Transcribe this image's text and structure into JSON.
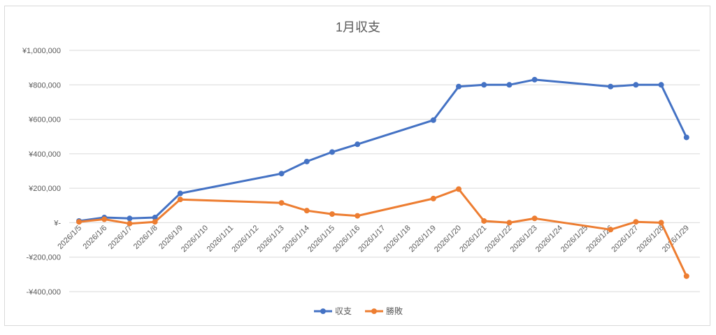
{
  "chart_data": {
    "type": "line",
    "title": "1月収支",
    "xlabel": "",
    "ylabel": "",
    "x": [
      "2026/1/5",
      "2026/1/6",
      "2026/1/7",
      "2026/1/8",
      "2026/1/9",
      "2026/1/10",
      "2026/1/11",
      "2026/1/12",
      "2026/1/13",
      "2026/1/14",
      "2026/1/15",
      "2026/1/16",
      "2026/1/17",
      "2026/1/18",
      "2026/1/19",
      "2026/1/20",
      "2026/1/21",
      "2026/1/22",
      "2026/1/23",
      "2026/1/24",
      "2026/1/25",
      "2026/1/26",
      "2026/1/27",
      "2026/1/28",
      "2026/1/29"
    ],
    "ylim": [
      -400000,
      1000000
    ],
    "yticks": [
      {
        "value": 1000000,
        "label": "¥1,000,000"
      },
      {
        "value": 800000,
        "label": "¥800,000"
      },
      {
        "value": 600000,
        "label": "¥600,000"
      },
      {
        "value": 400000,
        "label": "¥400,000"
      },
      {
        "value": 200000,
        "label": "¥200,000"
      },
      {
        "value": 0,
        "label": "¥-"
      },
      {
        "value": -200000,
        "label": "-¥200,000"
      },
      {
        "value": -400000,
        "label": "-¥400,000"
      }
    ],
    "grid": true,
    "legend_position": "bottom",
    "series": [
      {
        "name": "収支",
        "color": "#4472c4",
        "points": [
          {
            "x": "2026/1/5",
            "y": 10000
          },
          {
            "x": "2026/1/6",
            "y": 30000
          },
          {
            "x": "2026/1/7",
            "y": 25000
          },
          {
            "x": "2026/1/8",
            "y": 30000
          },
          {
            "x": "2026/1/9",
            "y": 170000
          },
          {
            "x": "2026/1/13",
            "y": 285000
          },
          {
            "x": "2026/1/14",
            "y": 355000
          },
          {
            "x": "2026/1/15",
            "y": 410000
          },
          {
            "x": "2026/1/16",
            "y": 455000
          },
          {
            "x": "2026/1/19",
            "y": 595000
          },
          {
            "x": "2026/1/20",
            "y": 790000
          },
          {
            "x": "2026/1/21",
            "y": 800000
          },
          {
            "x": "2026/1/22",
            "y": 800000
          },
          {
            "x": "2026/1/23",
            "y": 830000
          },
          {
            "x": "2026/1/26",
            "y": 790000
          },
          {
            "x": "2026/1/27",
            "y": 800000
          },
          {
            "x": "2026/1/28",
            "y": 800000
          },
          {
            "x": "2026/1/29",
            "y": 495000
          }
        ]
      },
      {
        "name": "勝敗",
        "color": "#ed7d31",
        "points": [
          {
            "x": "2026/1/5",
            "y": 5000
          },
          {
            "x": "2026/1/6",
            "y": 20000
          },
          {
            "x": "2026/1/7",
            "y": -5000
          },
          {
            "x": "2026/1/8",
            "y": 5000
          },
          {
            "x": "2026/1/9",
            "y": 135000
          },
          {
            "x": "2026/1/13",
            "y": 115000
          },
          {
            "x": "2026/1/14",
            "y": 70000
          },
          {
            "x": "2026/1/15",
            "y": 50000
          },
          {
            "x": "2026/1/16",
            "y": 40000
          },
          {
            "x": "2026/1/19",
            "y": 140000
          },
          {
            "x": "2026/1/20",
            "y": 195000
          },
          {
            "x": "2026/1/21",
            "y": 10000
          },
          {
            "x": "2026/1/22",
            "y": 0
          },
          {
            "x": "2026/1/23",
            "y": 25000
          },
          {
            "x": "2026/1/26",
            "y": -40000
          },
          {
            "x": "2026/1/27",
            "y": 5000
          },
          {
            "x": "2026/1/28",
            "y": 0
          },
          {
            "x": "2026/1/29",
            "y": -310000
          }
        ]
      }
    ]
  }
}
